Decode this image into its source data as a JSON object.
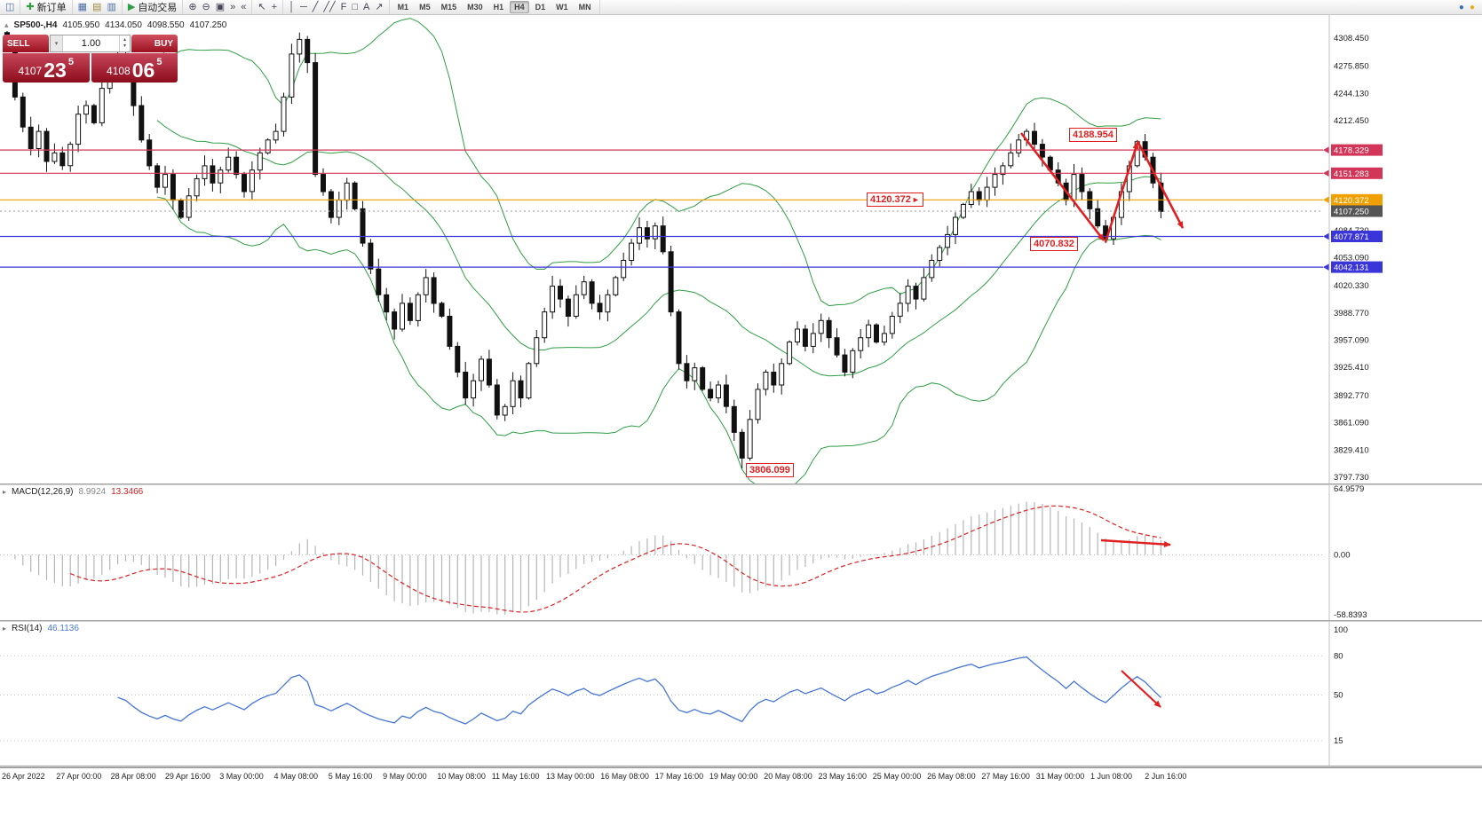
{
  "icons": {
    "dropdown": "▾",
    "spin_up": "▴",
    "spin_down": "▾",
    "pane_collapse": "▸",
    "symbol_marker": "▴",
    "annotation_arrow": "►"
  },
  "toolbar": {
    "groups": [
      {
        "name": "file",
        "items": [
          {
            "name": "new-chart-icon",
            "glyph": "◫",
            "color": "#4a6fa5"
          }
        ]
      },
      {
        "name": "order",
        "items": [
          {
            "name": "new-order-button",
            "glyph": "✚",
            "color": "#2f9e44",
            "label": "新订单"
          }
        ]
      },
      {
        "name": "windows",
        "items": [
          {
            "name": "chart-window-icon",
            "glyph": "▦",
            "color": "#4a6fa5"
          },
          {
            "name": "profiles-icon",
            "glyph": "▤",
            "color": "#9a8a3a"
          },
          {
            "name": "market-watch-icon",
            "glyph": "▥",
            "color": "#4a6fa5"
          }
        ]
      },
      {
        "name": "autotrade",
        "items": [
          {
            "name": "auto-trading-button",
            "glyph": "▶",
            "color": "#2f9e44",
            "label": "自动交易"
          }
        ]
      },
      {
        "name": "zoom",
        "items": [
          {
            "name": "zoom-in-icon",
            "glyph": "⊕",
            "color": "#444455"
          },
          {
            "name": "zoom-out-icon",
            "glyph": "⊖",
            "color": "#444455"
          },
          {
            "name": "tile-windows-icon",
            "glyph": "▣",
            "color": "#444455"
          },
          {
            "name": "auto-scroll-icon",
            "glyph": "»",
            "color": "#444455"
          },
          {
            "name": "chart-shift-icon",
            "glyph": "«",
            "color": "#444455"
          }
        ]
      },
      {
        "name": "pointer",
        "items": [
          {
            "name": "cursor-icon",
            "glyph": "↖",
            "color": "#444455"
          },
          {
            "name": "crosshair-icon",
            "glyph": "+",
            "color": "#444455"
          }
        ]
      },
      {
        "name": "objects",
        "items": [
          {
            "name": "vertical-line-icon",
            "glyph": "│",
            "color": "#444455"
          },
          {
            "name": "horizontal-line-icon",
            "glyph": "─",
            "color": "#444455"
          },
          {
            "name": "trendline-icon",
            "glyph": "╱",
            "color": "#444455"
          },
          {
            "name": "channel-icon",
            "glyph": "╱╱",
            "color": "#444455"
          },
          {
            "name": "fibonacci-icon",
            "glyph": "F",
            "color": "#444455"
          },
          {
            "name": "shapes-icon",
            "glyph": "□",
            "color": "#444455"
          },
          {
            "name": "text-icon",
            "glyph": "A",
            "color": "#444455"
          },
          {
            "name": "arrows-icon",
            "glyph": "↗",
            "color": "#444455"
          }
        ]
      }
    ],
    "timeframes": [
      "M1",
      "M5",
      "M15",
      "M30",
      "H1",
      "H4",
      "D1",
      "W1",
      "MN"
    ],
    "active_timeframe": "H4",
    "right_icons": [
      {
        "name": "community-icon",
        "glyph": "●",
        "color": "#3a6fb0"
      },
      {
        "name": "alerts-icon",
        "glyph": "●",
        "color": "#e0b020"
      }
    ]
  },
  "symbol_header": {
    "symbol": "SP500-,H4",
    "open": "4105.950",
    "high": "4134.050",
    "low": "4098.550",
    "close": "4107.250"
  },
  "order_panel": {
    "sell_label": "SELL",
    "buy_label": "BUY",
    "volume": "1.00",
    "bid": {
      "prefix": "4107",
      "big": "23",
      "sup": "5"
    },
    "ask": {
      "prefix": "4108",
      "big": "06",
      "sup": "5"
    }
  },
  "main_chart": {
    "price_axis_plain": [
      "4308.450",
      "4275.850",
      "4244.130",
      "4212.450",
      "4084.730",
      "4053.090",
      "4020.330",
      "3988.770",
      "3957.090",
      "3925.410",
      "3892.770",
      "3861.090",
      "3829.410",
      "3797.730"
    ],
    "hlines": [
      {
        "label": "4178.329",
        "color": "#d23558"
      },
      {
        "label": "4151.283",
        "color": "#d23558"
      },
      {
        "label": "4120.372",
        "color": "#f0a000"
      },
      {
        "label": "4077.871",
        "color": "#3a35d8"
      },
      {
        "label": "4042.131",
        "color": "#3a35d8"
      }
    ],
    "current_price": {
      "label": "4107.250",
      "color": "#555555"
    },
    "annotations": [
      {
        "text": "4188.954"
      },
      {
        "text": "4120.372"
      },
      {
        "text": "4070.832"
      },
      {
        "text": "3806.099"
      }
    ]
  },
  "macd": {
    "name": "MACD(12,26,9)",
    "value_main": "8.9924",
    "value_signal": "13.3466",
    "scale": [
      "64.9579",
      "0.00",
      "-58.8393"
    ]
  },
  "rsi": {
    "name": "RSI(14)",
    "value": "46.1136",
    "scale": [
      "100",
      "80",
      "50",
      "15"
    ],
    "levels": [
      80,
      50,
      15
    ]
  },
  "time_axis": {
    "labels": [
      "26 Apr 2022",
      "27 Apr 00:00",
      "28 Apr 08:00",
      "29 Apr 16:00",
      "3 May 00:00",
      "4 May 08:00",
      "5 May 16:00",
      "9 May 00:00",
      "10 May 08:00",
      "11 May 16:00",
      "13 May 00:00",
      "16 May 08:00",
      "17 May 16:00",
      "19 May 00:00",
      "20 May 08:00",
      "23 May 16:00",
      "25 May 00:00",
      "26 May 08:00",
      "27 May 16:00",
      "31 May 00:00",
      "1 Jun 08:00",
      "2 Jun 16:00"
    ]
  },
  "chart_data": {
    "type": "candlestick",
    "symbol": "SP500",
    "timeframe": "H4",
    "title_ohlc": {
      "open": 4105.95,
      "high": 4134.05,
      "low": 4098.55,
      "close": 4107.25
    },
    "first_open": 4315,
    "closes": [
      4300,
      4240,
      4205,
      4180,
      4200,
      4165,
      4175,
      4160,
      4185,
      4220,
      4230,
      4210,
      4250,
      4265,
      4287,
      4270,
      4230,
      4190,
      4160,
      4135,
      4150,
      4120,
      4100,
      4125,
      4145,
      4160,
      4140,
      4155,
      4170,
      4150,
      4130,
      4155,
      4175,
      4190,
      4200,
      4240,
      4290,
      4307,
      4280,
      4150,
      4130,
      4100,
      4120,
      4140,
      4110,
      4070,
      4040,
      4010,
      3990,
      3970,
      4000,
      3980,
      4010,
      4030,
      4000,
      3985,
      3950,
      3920,
      3890,
      3910,
      3935,
      3905,
      3870,
      3880,
      3910,
      3890,
      3930,
      3960,
      3990,
      4020,
      4005,
      3985,
      4010,
      4025,
      4000,
      3990,
      4010,
      4030,
      4050,
      4070,
      4088,
      4075,
      4090,
      4060,
      3990,
      3930,
      3910,
      3925,
      3900,
      3890,
      3905,
      3880,
      3850,
      3820,
      3865,
      3900,
      3920,
      3905,
      3930,
      3955,
      3970,
      3950,
      3965,
      3980,
      3960,
      3940,
      3920,
      3945,
      3960,
      3975,
      3955,
      3965,
      3985,
      4000,
      4020,
      4005,
      4030,
      4050,
      4065,
      4080,
      4100,
      4115,
      4130,
      4120,
      4135,
      4150,
      4160,
      4175,
      4190,
      4200,
      4185,
      4170,
      4155,
      4140,
      4120,
      4150,
      4130,
      4110,
      4090,
      4075,
      4100,
      4130,
      4160,
      4188,
      4170,
      4140,
      4107
    ],
    "indicators": {
      "bollinger_period": 20,
      "bollinger_deviation": 2,
      "macd": [
        12,
        26,
        9
      ],
      "macd_values": [
        8.9924,
        13.3466
      ],
      "rsi_period": 14,
      "rsi_value": 46.1136
    },
    "horizontal_levels": [
      4178.329,
      4151.283,
      4120.372,
      4077.871,
      4042.131
    ],
    "swing_annotations": [
      4188.954,
      4120.372,
      4070.832,
      3806.099
    ],
    "y_axis_range": [
      3797.73,
      4308.45
    ]
  }
}
